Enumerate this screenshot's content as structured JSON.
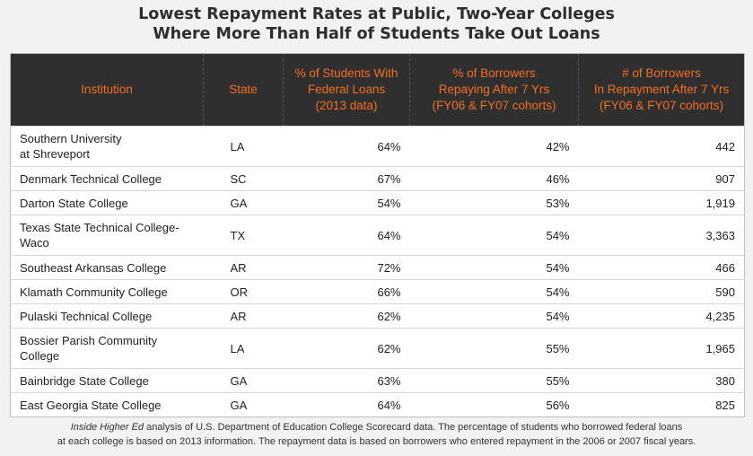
{
  "chart_data": {
    "type": "table",
    "title_line1": "Lowest Repayment Rates at Public, Two-Year Colleges",
    "title_line2": "Where More Than Half of Students Take Out Loans",
    "columns": [
      "Institution",
      "State",
      "% of Students With Federal Loans (2013 data)",
      "% of Borrowers Repaying After 7 Yrs (FY06 & FY07 cohorts)",
      "# of Borrowers In Repayment After 7 Yrs (FY06 & FY07 cohorts)"
    ],
    "header": {
      "institution": "Institution",
      "state": "State",
      "pct_loans": [
        "% of Students With",
        "Federal Loans",
        "(2013 data)"
      ],
      "pct_repaying": [
        "% of Borrowers",
        "Repaying After 7 Yrs",
        "(FY06 & FY07 cohorts)"
      ],
      "num_borrowers": [
        "# of Borrowers",
        "In Repayment After 7 Yrs",
        "(FY06 & FY07 cohorts)"
      ]
    },
    "rows": [
      {
        "institution": [
          "Southern University",
          "at Shreveport"
        ],
        "state": "LA",
        "pct_loans": "64%",
        "pct_repaying": "42%",
        "num_borrowers": "442"
      },
      {
        "institution": [
          "Denmark Technical College"
        ],
        "state": "SC",
        "pct_loans": "67%",
        "pct_repaying": "46%",
        "num_borrowers": "907"
      },
      {
        "institution": [
          "Darton State College"
        ],
        "state": "GA",
        "pct_loans": "54%",
        "pct_repaying": "53%",
        "num_borrowers": "1,919"
      },
      {
        "institution": [
          "Texas State Technical College-",
          "Waco"
        ],
        "state": "TX",
        "pct_loans": "64%",
        "pct_repaying": "54%",
        "num_borrowers": "3,363"
      },
      {
        "institution": [
          "Southeast Arkansas College"
        ],
        "state": "AR",
        "pct_loans": "72%",
        "pct_repaying": "54%",
        "num_borrowers": "466"
      },
      {
        "institution": [
          "Klamath Community College"
        ],
        "state": "OR",
        "pct_loans": "66%",
        "pct_repaying": "54%",
        "num_borrowers": "590"
      },
      {
        "institution": [
          "Pulaski Technical College"
        ],
        "state": "AR",
        "pct_loans": "62%",
        "pct_repaying": "54%",
        "num_borrowers": "4,235"
      },
      {
        "institution": [
          "Bossier Parish Community",
          "College"
        ],
        "state": "LA",
        "pct_loans": "62%",
        "pct_repaying": "55%",
        "num_borrowers": "1,965"
      },
      {
        "institution": [
          "Bainbridge State College"
        ],
        "state": "GA",
        "pct_loans": "63%",
        "pct_repaying": "55%",
        "num_borrowers": "380"
      },
      {
        "institution": [
          "East Georgia State College"
        ],
        "state": "GA",
        "pct_loans": "64%",
        "pct_repaying": "56%",
        "num_borrowers": "825"
      }
    ],
    "footnote": {
      "source_italic": "Inside Higher Ed",
      "line1_rest": " analysis of U.S. Department of Education College Scorecard data. The percentage of students who borrowed federal loans",
      "line2": "at each college is based on 2013 information. The repayment data is based on borrowers who entered repayment in the 2006 or 2007 fiscal years."
    },
    "colors": {
      "header_bg": "#2f2f2f",
      "header_text": "#f26d21",
      "background": "#f2f2f2",
      "row_bg": "#ffffff"
    }
  }
}
